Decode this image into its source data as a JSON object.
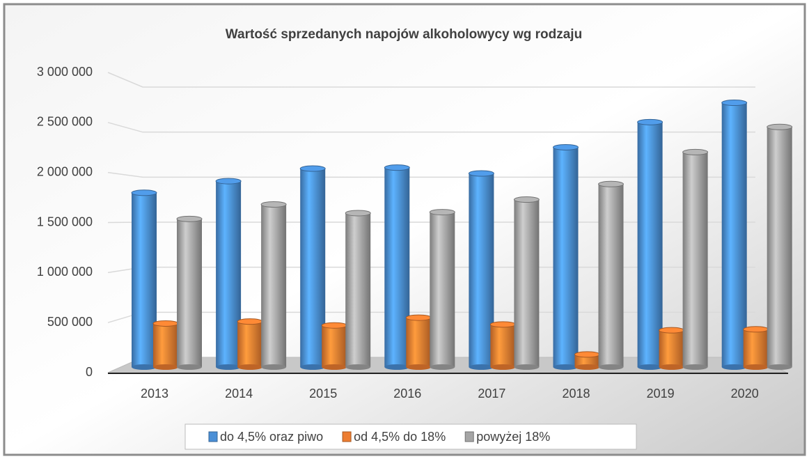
{
  "chart_data": {
    "type": "bar",
    "title": "Wartość sprzedanych napojów alkoholowycy wg rodzaju",
    "categories": [
      "2013",
      "2014",
      "2015",
      "2016",
      "2017",
      "2018",
      "2019",
      "2020"
    ],
    "series": [
      {
        "name": "do 4,5% oraz piwo",
        "color": "#4a8fd6",
        "values": [
          1800000,
          1920000,
          2050000,
          2060000,
          2000000,
          2270000,
          2530000,
          2730000
        ]
      },
      {
        "name": "od 4,5% do 18%",
        "color": "#ed7d31",
        "values": [
          450000,
          470000,
          430000,
          510000,
          440000,
          130000,
          380000,
          390000
        ]
      },
      {
        "name": "powyżej 18%",
        "color": "#a5a5a5",
        "values": [
          1530000,
          1680000,
          1590000,
          1600000,
          1730000,
          1890000,
          2220000,
          2480000
        ]
      }
    ],
    "ylim": [
      0,
      3000000
    ],
    "yticks": [
      0,
      {
        "value": 500000,
        "label": "500 000"
      },
      {
        "value": 1000000,
        "label": "1 000 000"
      },
      {
        "value": 1500000,
        "label": "1 500 000"
      },
      {
        "value": 2000000,
        "label": "2 000 000"
      },
      {
        "value": 2500000,
        "label": "2 500 000"
      },
      {
        "value": 3000000,
        "label": "3 000 000"
      }
    ],
    "grid": true,
    "legend": "bottom"
  }
}
